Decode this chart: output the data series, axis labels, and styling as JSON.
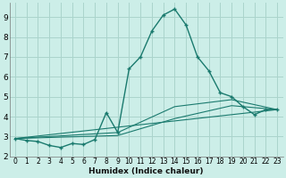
{
  "xlabel": "Humidex (Indice chaleur)",
  "background_color": "#cceee8",
  "grid_color": "#aad4cc",
  "line_color": "#1a7a6e",
  "xlim": [
    -0.5,
    23.5
  ],
  "ylim": [
    2.0,
    9.7
  ],
  "x_ticks": [
    0,
    1,
    2,
    3,
    4,
    5,
    6,
    7,
    8,
    9,
    10,
    11,
    12,
    13,
    14,
    15,
    16,
    17,
    18,
    19,
    20,
    21,
    22,
    23
  ],
  "y_ticks": [
    2,
    3,
    4,
    5,
    6,
    7,
    8,
    9
  ],
  "main_series": {
    "x": [
      0,
      1,
      2,
      3,
      4,
      5,
      6,
      7,
      8,
      9,
      10,
      11,
      12,
      13,
      14,
      15,
      16,
      17,
      18,
      19,
      20,
      21,
      22,
      23
    ],
    "y": [
      2.9,
      2.8,
      2.75,
      2.55,
      2.45,
      2.65,
      2.6,
      2.85,
      4.2,
      3.2,
      6.4,
      7.0,
      8.3,
      9.1,
      9.4,
      8.6,
      7.0,
      6.3,
      5.2,
      5.0,
      4.5,
      4.1,
      4.35,
      4.35
    ]
  },
  "smooth_lines": [
    {
      "x": [
        0,
        23
      ],
      "y": [
        2.9,
        4.35
      ]
    },
    {
      "x": [
        0,
        9,
        14,
        19,
        23
      ],
      "y": [
        2.9,
        3.05,
        3.9,
        4.55,
        4.35
      ]
    },
    {
      "x": [
        0,
        9,
        14,
        19,
        23
      ],
      "y": [
        2.9,
        3.2,
        4.5,
        4.85,
        4.35
      ]
    }
  ]
}
